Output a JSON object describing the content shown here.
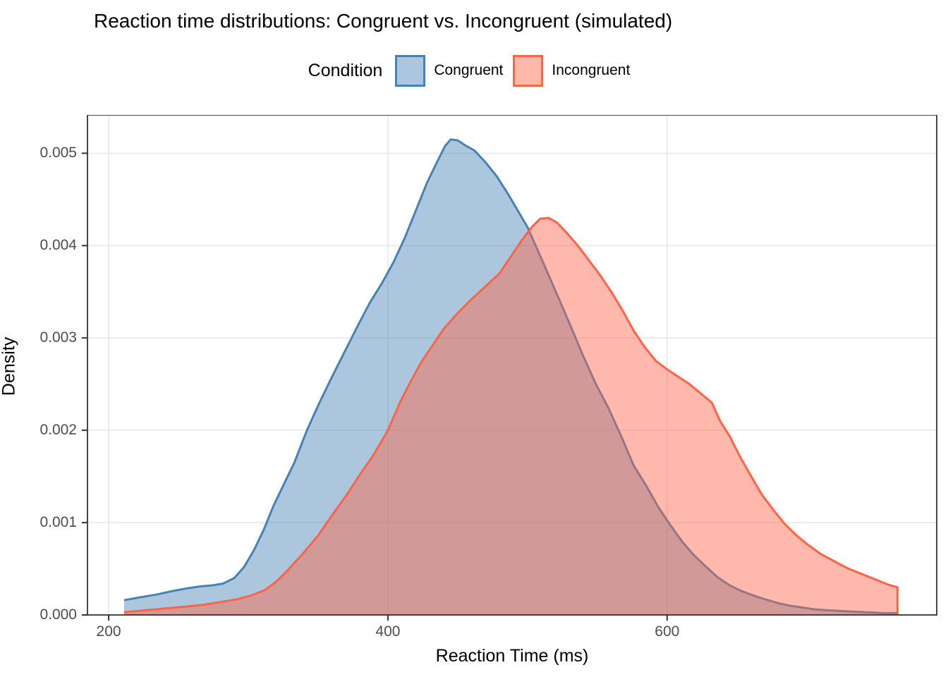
{
  "title": "Reaction time distributions: Congruent vs. Incongruent (simulated)",
  "legend": {
    "title": "Condition",
    "items": [
      {
        "label": "Congruent"
      },
      {
        "label": "Incongruent"
      }
    ]
  },
  "colors": {
    "congruent_line": "#4682B4",
    "congruent_fill": "rgba(70,130,180,0.45)",
    "incongruent_line": "#FF6347",
    "incongruent_fill": "rgba(255,99,71,0.45)",
    "gridline": "#e8e8e8",
    "panel_border": "#333333",
    "tick_mark": "#333333",
    "axis_text": "#4d4d4d",
    "title_text": "#000000"
  },
  "chart_data": {
    "type": "area",
    "subtype": "density",
    "title": "Reaction time distributions: Congruent vs. Incongruent (simulated)",
    "xlabel": "Reaction Time (ms)",
    "ylabel": "Density",
    "legend_title": "Condition",
    "legend_position": "top",
    "grid": "major-only",
    "x_domain": [
      184.8,
      793.1
    ],
    "y_domain": [
      0,
      0.005415
    ],
    "x_ticks": [
      200,
      400,
      600
    ],
    "x_tick_labels": [
      "200",
      "400",
      "600"
    ],
    "y_ticks": [
      0.0,
      0.001,
      0.002,
      0.003,
      0.004,
      0.005
    ],
    "y_tick_labels": [
      "0.000",
      "0.001",
      "0.002",
      "0.003",
      "0.004",
      "0.005"
    ],
    "series": [
      {
        "name": "Congruent",
        "line_color": "#4682B4",
        "fill_color": "rgba(70,130,180,0.45)",
        "close_right_edge": false,
        "points": [
          [
            211,
            0.00016
          ],
          [
            222,
            0.00019
          ],
          [
            234,
            0.00022
          ],
          [
            246,
            0.00026
          ],
          [
            257,
            0.00029
          ],
          [
            266,
            0.00031
          ],
          [
            274,
            0.00032
          ],
          [
            282,
            0.00034
          ],
          [
            290,
            0.0004
          ],
          [
            297,
            0.00052
          ],
          [
            304,
            0.0007
          ],
          [
            311,
            0.00092
          ],
          [
            318,
            0.00118
          ],
          [
            325,
            0.0014
          ],
          [
            333,
            0.00165
          ],
          [
            342,
            0.002
          ],
          [
            351,
            0.0023
          ],
          [
            360,
            0.00258
          ],
          [
            369,
            0.00285
          ],
          [
            378,
            0.00312
          ],
          [
            387,
            0.00338
          ],
          [
            396,
            0.0036
          ],
          [
            404,
            0.00382
          ],
          [
            412,
            0.00408
          ],
          [
            420,
            0.00438
          ],
          [
            428,
            0.00468
          ],
          [
            436,
            0.00493
          ],
          [
            441,
            0.00508
          ],
          [
            445,
            0.00515
          ],
          [
            450,
            0.00514
          ],
          [
            456,
            0.00508
          ],
          [
            462,
            0.00503
          ],
          [
            470,
            0.0049
          ],
          [
            478,
            0.00475
          ],
          [
            486,
            0.00456
          ],
          [
            493,
            0.00438
          ],
          [
            500,
            0.0042
          ],
          [
            507,
            0.00396
          ],
          [
            514,
            0.00372
          ],
          [
            522,
            0.00344
          ],
          [
            530,
            0.00316
          ],
          [
            540,
            0.0028
          ],
          [
            549,
            0.0025
          ],
          [
            558,
            0.00224
          ],
          [
            567,
            0.00194
          ],
          [
            576,
            0.00162
          ],
          [
            585,
            0.0014
          ],
          [
            594,
            0.00116
          ],
          [
            602,
            0.00098
          ],
          [
            611,
            0.00079
          ],
          [
            619,
            0.00065
          ],
          [
            628,
            0.00052
          ],
          [
            636,
            0.00041
          ],
          [
            645,
            0.00032
          ],
          [
            653,
            0.00026
          ],
          [
            662,
            0.00021
          ],
          [
            670,
            0.00017
          ],
          [
            679,
            0.00013
          ],
          [
            688,
            0.0001
          ],
          [
            697,
            8e-05
          ],
          [
            706,
            6e-05
          ],
          [
            716,
            5e-05
          ],
          [
            728,
            4e-05
          ],
          [
            742,
            3e-05
          ],
          [
            755,
            2e-05
          ],
          [
            765,
            2e-05
          ]
        ]
      },
      {
        "name": "Incongruent",
        "line_color": "#FF6347",
        "fill_color": "rgba(255,99,71,0.45)",
        "close_right_edge": true,
        "points": [
          [
            211,
            3e-05
          ],
          [
            225,
            5e-05
          ],
          [
            240,
            7e-05
          ],
          [
            255,
            9e-05
          ],
          [
            268,
            0.00011
          ],
          [
            280,
            0.00014
          ],
          [
            292,
            0.00017
          ],
          [
            302,
            0.00021
          ],
          [
            312,
            0.00027
          ],
          [
            320,
            0.00036
          ],
          [
            328,
            0.00048
          ],
          [
            334,
            0.00058
          ],
          [
            340,
            0.00068
          ],
          [
            350,
            0.00086
          ],
          [
            360,
            0.00108
          ],
          [
            370,
            0.00129
          ],
          [
            380,
            0.00152
          ],
          [
            390,
            0.00174
          ],
          [
            400,
            0.002
          ],
          [
            408,
            0.00228
          ],
          [
            416,
            0.00252
          ],
          [
            424,
            0.00274
          ],
          [
            432,
            0.00292
          ],
          [
            440,
            0.0031
          ],
          [
            450,
            0.00327
          ],
          [
            460,
            0.00342
          ],
          [
            470,
            0.00356
          ],
          [
            480,
            0.0037
          ],
          [
            488,
            0.00388
          ],
          [
            496,
            0.00406
          ],
          [
            503,
            0.0042
          ],
          [
            509,
            0.00429
          ],
          [
            515,
            0.0043
          ],
          [
            521,
            0.00425
          ],
          [
            528,
            0.00414
          ],
          [
            536,
            0.004
          ],
          [
            544,
            0.00384
          ],
          [
            552,
            0.00368
          ],
          [
            560,
            0.0035
          ],
          [
            568,
            0.0033
          ],
          [
            576,
            0.00308
          ],
          [
            584,
            0.0029
          ],
          [
            592,
            0.00275
          ],
          [
            600,
            0.00266
          ],
          [
            608,
            0.00258
          ],
          [
            616,
            0.0025
          ],
          [
            624,
            0.0024
          ],
          [
            632,
            0.0023
          ],
          [
            638,
            0.0021
          ],
          [
            645,
            0.00193
          ],
          [
            652,
            0.00172
          ],
          [
            661,
            0.00148
          ],
          [
            668,
            0.0013
          ],
          [
            676,
            0.00114
          ],
          [
            684,
            0.00099
          ],
          [
            692,
            0.00087
          ],
          [
            700,
            0.00077
          ],
          [
            710,
            0.00066
          ],
          [
            720,
            0.00058
          ],
          [
            730,
            0.0005
          ],
          [
            740,
            0.00044
          ],
          [
            750,
            0.00038
          ],
          [
            758,
            0.00033
          ],
          [
            765,
            0.0003
          ]
        ]
      }
    ]
  }
}
